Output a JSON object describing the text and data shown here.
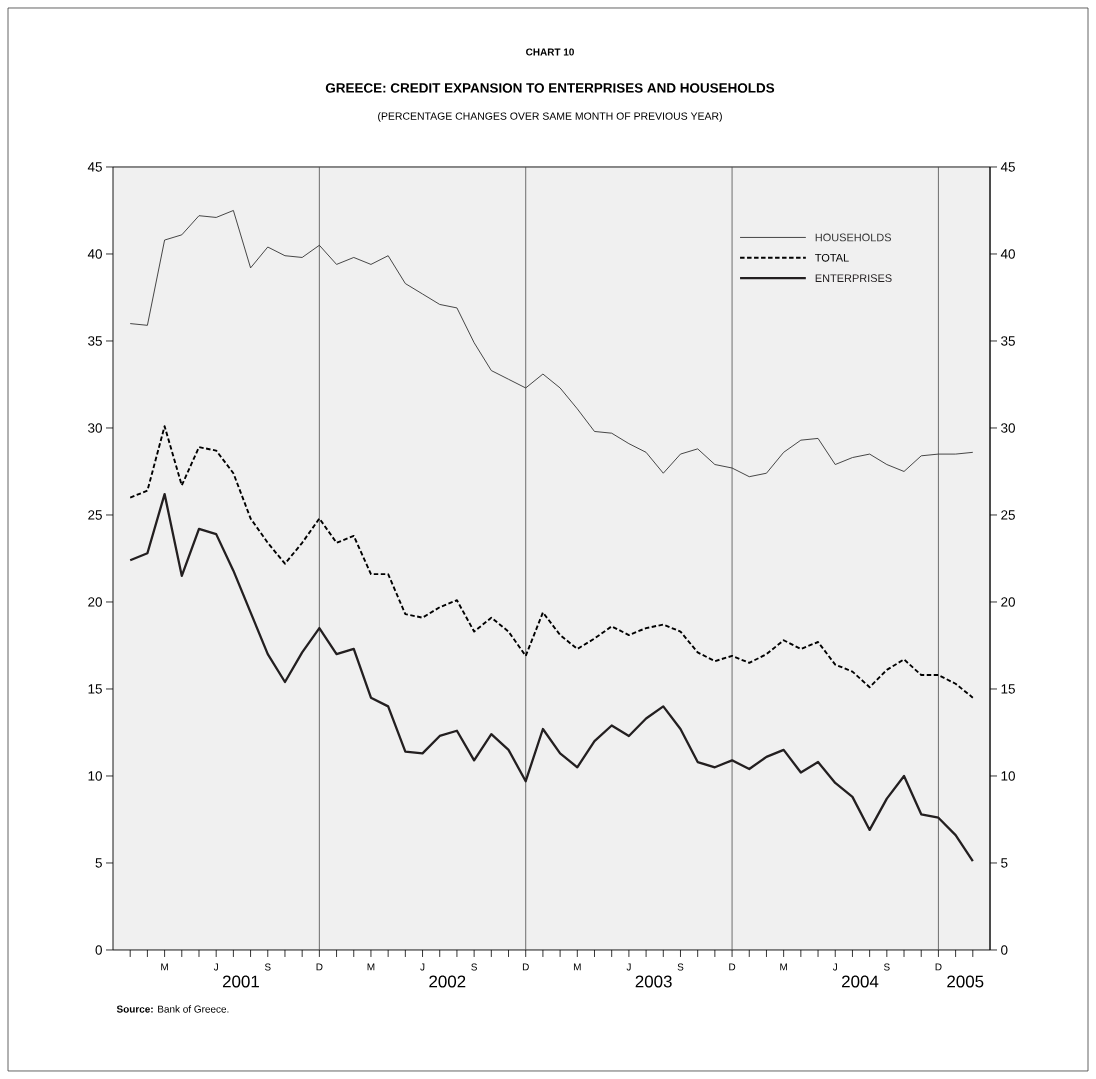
{
  "chart_data": {
    "type": "line",
    "title": "GREECE: CREDIT EXPANSION TO ENTERPRISES AND HOUSEHOLDS",
    "subtitle": "(PERCENTAGE CHANGES OVER SAME MONTH OF PREVIOUS YEAR)",
    "annotations": [
      "CHART 10",
      "**Source:** Bank of Greece."
    ],
    "categories": [
      null,
      null,
      "M",
      null,
      null,
      "J",
      null,
      null,
      "S",
      null,
      null,
      "D",
      null,
      null,
      "M",
      null,
      null,
      "J",
      null,
      null,
      "S",
      null,
      null,
      "D",
      null,
      null,
      "M",
      null,
      null,
      "J",
      null,
      null,
      "S",
      null,
      null,
      "D",
      null,
      null,
      "M",
      null,
      null,
      "J",
      null,
      null,
      "S",
      null,
      null,
      "D",
      null,
      null
    ],
    "series": [
      {
        "name": "HOUSEHOLDS",
        "color": "#333333",
        "line_style": "solid",
        "values": [
          36.0,
          35.9,
          40.8,
          41.1,
          42.2,
          42.1,
          42.5,
          39.2,
          40.4,
          39.9,
          39.8,
          40.5,
          39.4,
          39.8,
          39.4,
          39.9,
          38.3,
          37.7,
          37.1,
          36.9,
          34.9,
          33.3,
          32.8,
          32.3,
          33.1,
          32.3,
          31.1,
          29.8,
          29.7,
          29.1,
          28.6,
          27.4,
          28.5,
          28.8,
          27.9,
          27.7,
          27.2,
          27.4,
          28.6,
          29.3,
          29.4,
          27.9,
          28.3,
          28.5,
          27.9,
          27.5,
          28.4,
          28.5,
          28.5,
          28.6
        ]
      },
      {
        "name": "TOTAL",
        "color": "#000000",
        "line_style": "dashed",
        "values": [
          26.0,
          26.4,
          30.1,
          26.7,
          28.9,
          28.7,
          27.4,
          24.8,
          23.4,
          22.2,
          23.4,
          24.8,
          23.4,
          23.8,
          21.6,
          21.6,
          19.3,
          19.1,
          19.7,
          20.1,
          18.3,
          19.1,
          18.3,
          16.9,
          19.4,
          18.1,
          17.3,
          17.9,
          18.6,
          18.1,
          18.5,
          18.7,
          18.3,
          17.1,
          16.6,
          16.9,
          16.5,
          17.0,
          17.8,
          17.3,
          17.7,
          16.4,
          16.0,
          15.1,
          16.1,
          16.7,
          15.8,
          15.8,
          15.3,
          14.5
        ]
      },
      {
        "name": "ENTERPRISES",
        "color": "#231f20",
        "line_style": "solid",
        "values": [
          22.4,
          22.8,
          26.2,
          21.5,
          24.2,
          23.9,
          21.8,
          19.4,
          17.0,
          15.4,
          17.1,
          18.5,
          17.0,
          17.3,
          14.5,
          14.0,
          11.4,
          11.3,
          12.3,
          12.6,
          10.9,
          12.4,
          11.5,
          9.7,
          12.7,
          11.3,
          10.5,
          12.0,
          12.9,
          12.3,
          13.3,
          14.0,
          12.7,
          10.8,
          10.5,
          10.9,
          10.4,
          11.1,
          11.5,
          10.2,
          10.8,
          9.6,
          8.8,
          6.9,
          8.7,
          10.0,
          7.8,
          7.6,
          6.6,
          5.1
        ]
      }
    ],
    "x2lim": [
      "2000-12",
      "2005-03"
    ],
    "x2ticks": [
      {
        "value": "2001-07-16",
        "label": "2001"
      },
      {
        "value": "2002-07-16",
        "label": "2002"
      },
      {
        "value": "2003-07-16",
        "label": "2003"
      },
      {
        "value": "2004-07-16",
        "label": "2004"
      },
      {
        "value": "2005-01-20",
        "label": "2005"
      }
    ],
    "ylim": [
      0,
      45
    ],
    "yticks": [
      0,
      5,
      10,
      15,
      20,
      25,
      30,
      35,
      40,
      45
    ],
    "y2lim": [
      0,
      45
    ],
    "y2ticks": [
      0,
      5,
      10,
      15,
      20,
      25,
      30,
      35,
      40,
      45
    ],
    "ref_lines": [
      {
        "axis": "x2",
        "value": "2001-12",
        "color": "#4d4d4d"
      },
      {
        "axis": "x2",
        "value": "2002-12",
        "color": "#4d4d4d"
      },
      {
        "axis": "x2",
        "value": "2003-12",
        "color": "#4d4d4d"
      },
      {
        "axis": "x2",
        "value": "2004-12",
        "color": "#4d4d4d"
      }
    ],
    "legend": "top right"
  }
}
